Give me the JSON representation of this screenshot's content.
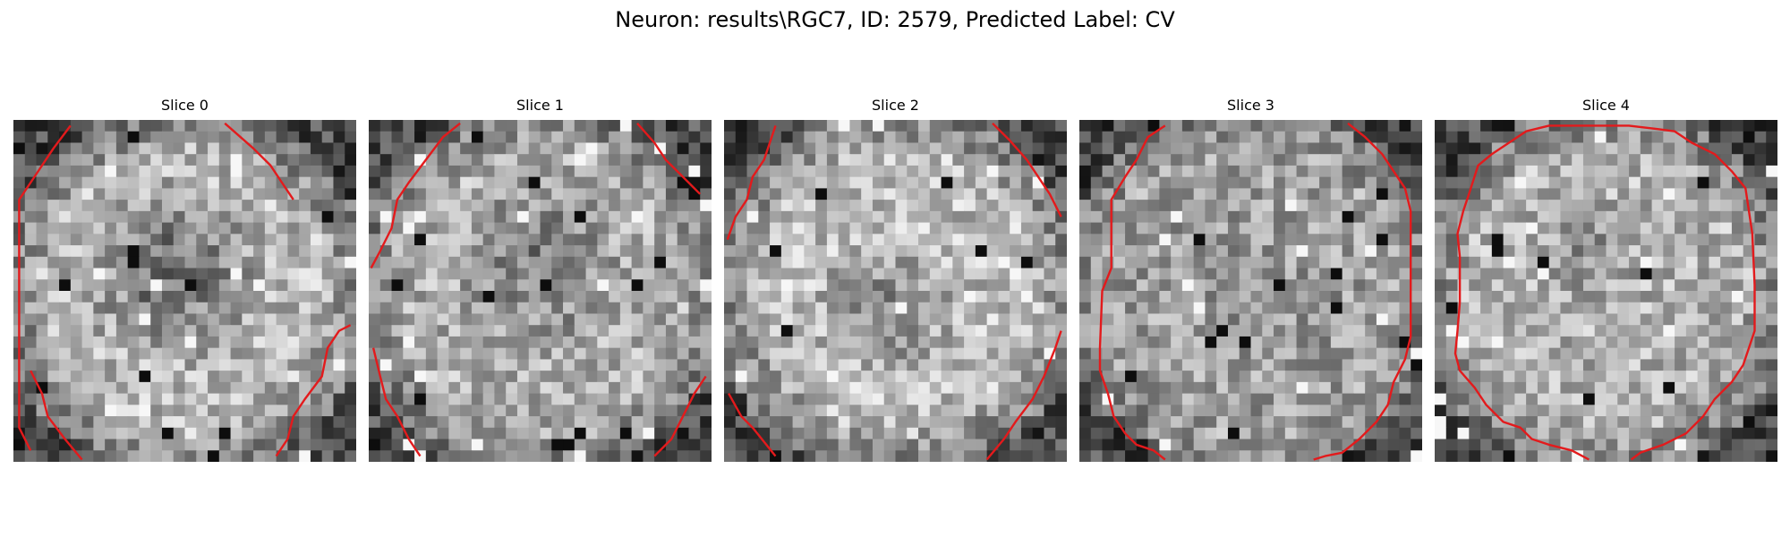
{
  "figure": {
    "suptitle": "Neuron: results\\RGC7, ID: 2579, Predicted Label: CV",
    "contour_color": "#e31a1c"
  },
  "panels": [
    {
      "title": "Slice 0"
    },
    {
      "title": "Slice 1"
    },
    {
      "title": "Slice 2"
    },
    {
      "title": "Slice 3"
    },
    {
      "title": "Slice 4"
    }
  ]
}
